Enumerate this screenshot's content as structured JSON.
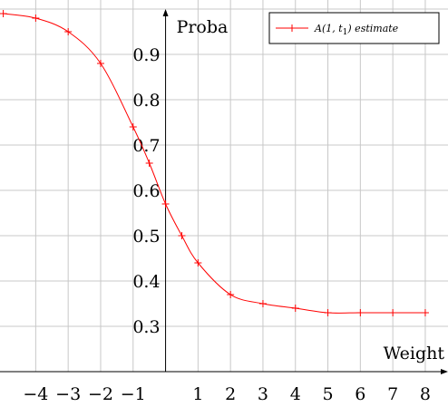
{
  "chart_data": {
    "type": "line",
    "xlabel": "Weight",
    "ylabel": "Proba",
    "xlim": [
      -5.1,
      8.7
    ],
    "ylim": [
      0.2,
      1.02
    ],
    "x_ticks": [
      {
        "value": -4,
        "label": "−4"
      },
      {
        "value": -3,
        "label": "−3"
      },
      {
        "value": -2,
        "label": "−2"
      },
      {
        "value": -1,
        "label": "−1"
      },
      {
        "value": 1,
        "label": "1"
      },
      {
        "value": 2,
        "label": "2"
      },
      {
        "value": 3,
        "label": "3"
      },
      {
        "value": 4,
        "label": "4"
      },
      {
        "value": 5,
        "label": "5"
      },
      {
        "value": 6,
        "label": "6"
      },
      {
        "value": 7,
        "label": "7"
      },
      {
        "value": 8,
        "label": "8"
      }
    ],
    "y_ticks": [
      {
        "value": 0.3,
        "label": "0.3"
      },
      {
        "value": 0.4,
        "label": "0.4"
      },
      {
        "value": 0.5,
        "label": "0.5"
      },
      {
        "value": 0.6,
        "label": "0.6"
      },
      {
        "value": 0.7,
        "label": "0.7"
      },
      {
        "value": 0.8,
        "label": "0.8"
      },
      {
        "value": 0.9,
        "label": "0.9"
      }
    ],
    "grid": true,
    "legend_position": "top-right",
    "series": [
      {
        "name": "A(1, t1) estimate",
        "color": "#ff0000",
        "marker": "plus",
        "x": [
          -5,
          -4,
          -3,
          -2,
          -1,
          -0.5,
          0,
          0.5,
          1,
          2,
          3,
          4,
          5,
          6,
          7,
          8
        ],
        "y": [
          0.99,
          0.98,
          0.95,
          0.88,
          0.74,
          0.66,
          0.57,
          0.5,
          0.44,
          0.37,
          0.35,
          0.34,
          0.33,
          0.33,
          0.33,
          0.33
        ]
      }
    ],
    "legend": {
      "label_prefix": "A(1, t",
      "label_sub": "1",
      "label_suffix": ") estimate"
    }
  }
}
